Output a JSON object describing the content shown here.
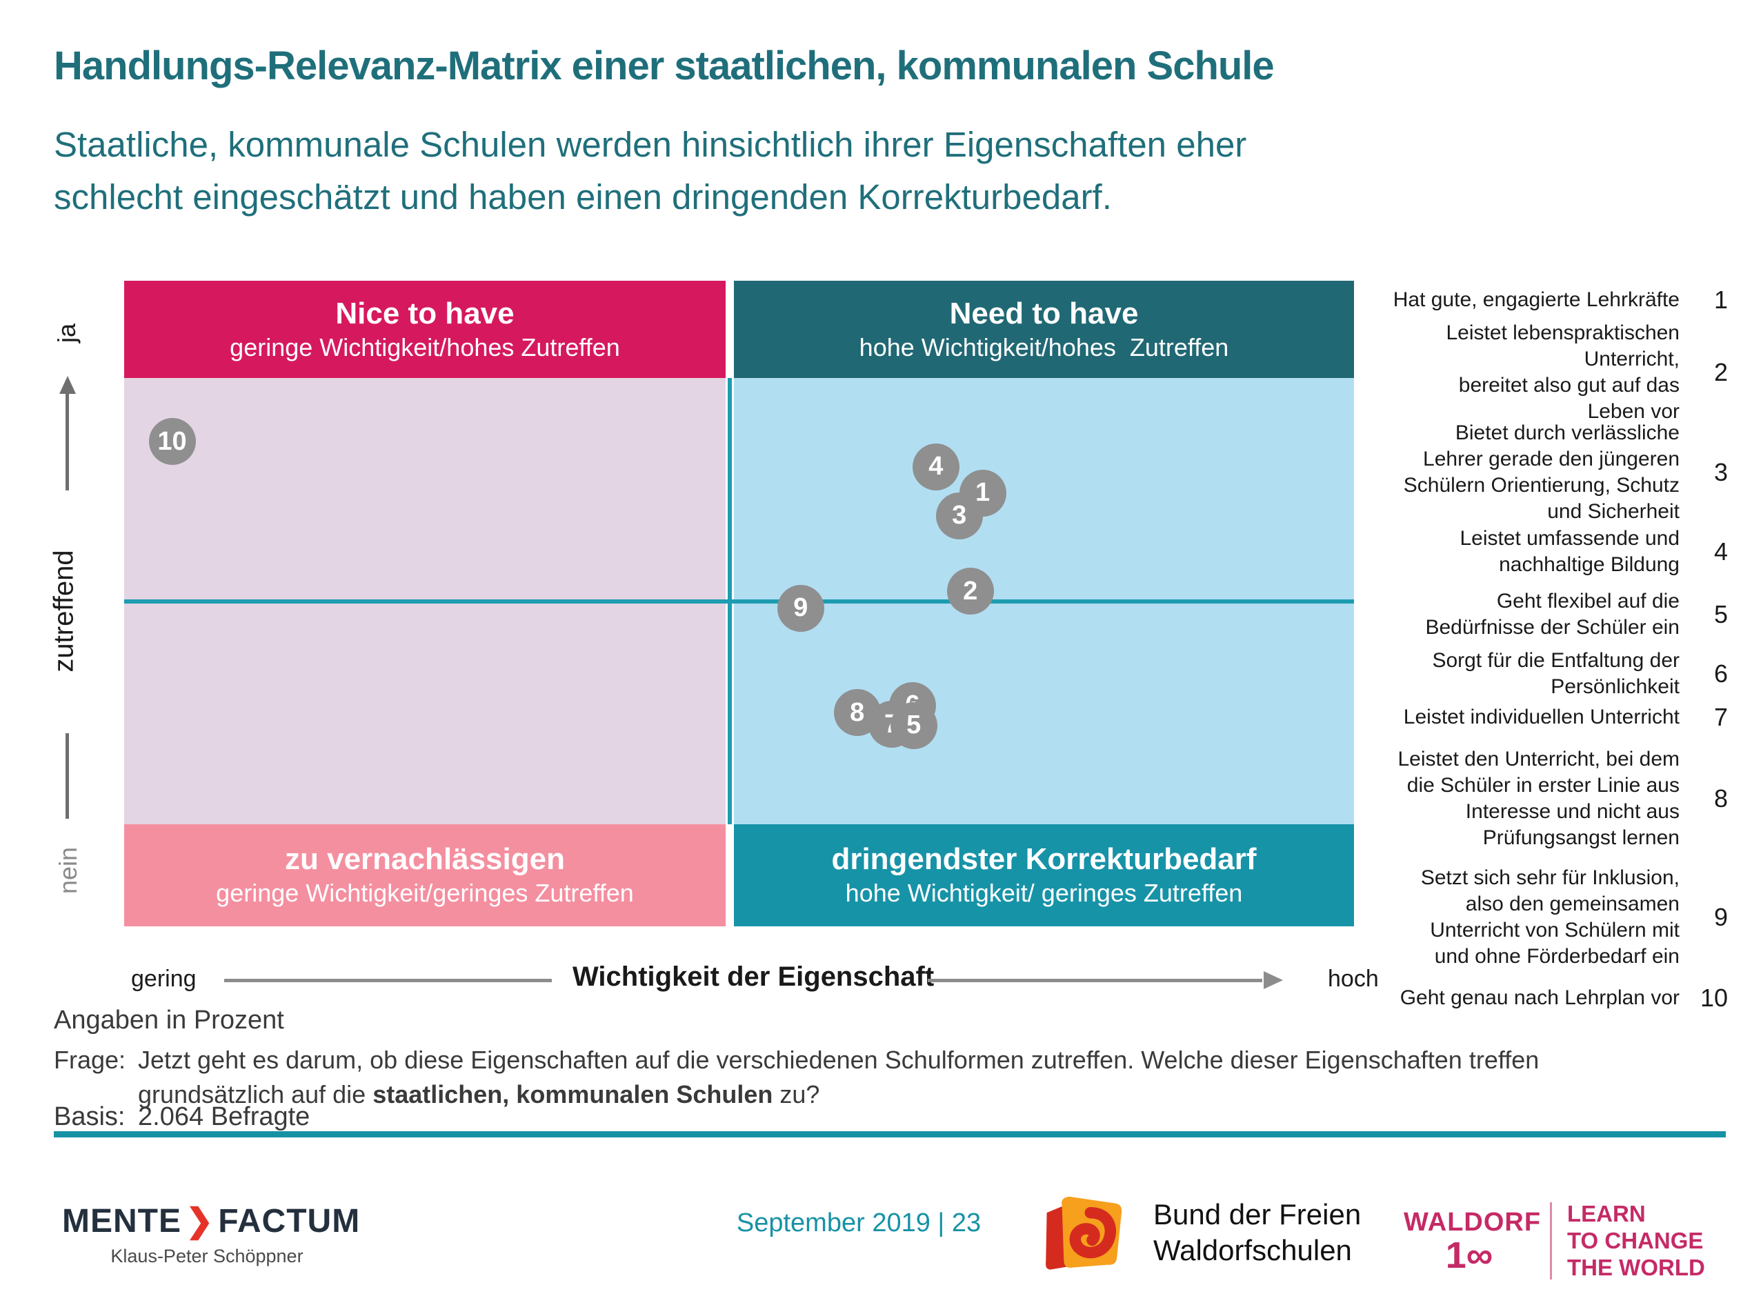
{
  "slide": {
    "title": "Handlungs-Relevanz-Matrix einer staatlichen, kommunalen Schule",
    "subtitle": "Staatliche, kommunale Schulen werden hinsichtlich ihrer Eigenschaften eher\nschlecht eingeschätzt und haben einen dringenden Korrekturbedarf."
  },
  "chart_data": {
    "type": "scatter",
    "title": "Handlungs-Relevanz-Matrix einer staatlichen, kommunalen Schule",
    "unit_note": "Angaben in Prozent",
    "x_axis": {
      "label": "Wichtigkeit der Eigenschaft",
      "min_label": "gering",
      "max_label": "hoch"
    },
    "y_axis": {
      "label": "zutreffend",
      "max_label": "ja",
      "min_label": "nein"
    },
    "quadrants": {
      "top_left": {
        "title": "Nice to have",
        "subtitle": "geringe Wichtigkeit/hohes Zutreffen",
        "color": "#D6195E"
      },
      "top_right": {
        "title": "Need to have",
        "subtitle": "hohe Wichtigkeit/hohes  Zutreffen",
        "color": "#206874"
      },
      "bottom_left": {
        "title": "zu vernachlässigen",
        "subtitle": "geringe Wichtigkeit/geringes Zutreffen",
        "color": "#F48FA0"
      },
      "bottom_right": {
        "title": "dringendster Korrekturbedarf",
        "subtitle": "hohe Wichtigkeit/ geringes Zutreffen",
        "color": "#1793A8"
      }
    },
    "points": [
      {
        "id": "10",
        "label": "Geht genau nach Lehrplan vor",
        "x_pct": 3.9,
        "y_pct": 24.9
      },
      {
        "id": "4",
        "label": "Leistet umfassende und nachhaltige Bildung",
        "x_pct": 66.0,
        "y_pct": 28.8
      },
      {
        "id": "1",
        "label": "Hat gute, engagierte Lehrkräfte",
        "x_pct": 69.8,
        "y_pct": 32.9
      },
      {
        "id": "3",
        "label": "Bietet durch verlässliche Lehrer gerade den jüngeren Schülern Orientierung, Schutz und Sicherheit",
        "x_pct": 67.9,
        "y_pct": 36.4
      },
      {
        "id": "2",
        "label": "Leistet lebenspraktischen Unterricht, bereitet also gut auf das Leben vor",
        "x_pct": 68.8,
        "y_pct": 48.1
      },
      {
        "id": "9",
        "label": "Setzt sich sehr für Inklusion, also den gemeinsamen Unterricht von Schülern mit und ohne Förderbedarf ein",
        "x_pct": 55.0,
        "y_pct": 50.7
      },
      {
        "id": "8",
        "label": "Leistet den Unterricht, bei dem die Schüler in erster Linie aus Interesse und nicht aus Prüfungsangst lernen",
        "x_pct": 59.6,
        "y_pct": 66.9
      },
      {
        "id": "6",
        "label": "Sorgt für die Entfaltung der Persönlichkeit",
        "x_pct": 64.1,
        "y_pct": 65.8
      },
      {
        "id": "7",
        "label": "Leistet individuellen Unterricht",
        "x_pct": 62.4,
        "y_pct": 68.7
      },
      {
        "id": "5",
        "label": "Geht flexibel auf die Bedürfnisse der Schüler ein",
        "x_pct": 64.2,
        "y_pct": 68.9
      }
    ]
  },
  "legend": {
    "items": [
      {
        "num": "1",
        "text": "Hat gute, engagierte Lehrkräfte"
      },
      {
        "num": "2",
        "text": "Leistet lebenspraktischen\nUnterricht,\nbereitet also gut auf das\nLeben vor"
      },
      {
        "num": "3",
        "text": "Bietet durch verlässliche\nLehrer gerade den jüngeren\nSchülern Orientierung, Schutz\nund Sicherheit"
      },
      {
        "num": "4",
        "text": "Leistet umfassende und\nnachhaltige Bildung"
      },
      {
        "num": "5",
        "text": "Geht flexibel auf die\nBedürfnisse der Schüler ein"
      },
      {
        "num": "6",
        "text": "Sorgt für die Entfaltung der\nPersönlichkeit"
      },
      {
        "num": "7",
        "text": "Leistet individuellen Unterricht"
      },
      {
        "num": "8",
        "text": "Leistet den Unterricht, bei dem\ndie Schüler in erster Linie aus\nInteresse und nicht aus\nPrüfungsangst lernen"
      },
      {
        "num": "9",
        "text": "Setzt sich sehr für Inklusion,\nalso den gemeinsamen\nUnterricht von Schülern mit\nund ohne Förderbedarf ein"
      },
      {
        "num": "10",
        "text": "Geht genau nach Lehrplan vor"
      }
    ]
  },
  "footnotes": {
    "unit": "Angaben in Prozent",
    "question_label": "Frage:",
    "question_before": "Jetzt geht es darum, ob diese Eigenschaften auf die verschiedenen Schulformen zutreffen. Welche dieser Eigenschaften treffen\ngrundsätzlich auf die ",
    "question_bold": "staatlichen, kommunalen Schulen",
    "question_after": " zu?",
    "basis_label": "Basis:",
    "basis_value": "2.064 Befragte"
  },
  "footer": {
    "brand_left": "MENTE",
    "brand_chevron": "❯",
    "brand_right": "FACTUM",
    "brand_person": "Klaus-Peter Schöppner",
    "date_page": "September 2019 | 23",
    "partner_name": "Bund der Freien\nWaldorfschulen",
    "waldorf_word": "WALDORF",
    "waldorf_num": "1∞",
    "waldorf_tagline": "LEARN\nTO CHANGE\nTHE WORLD"
  },
  "colors": {
    "title_teal": "#1F6F7B",
    "quad_top_left": "#D6195E",
    "quad_top_right": "#206874",
    "quad_bottom_left": "#F48FA0",
    "quad_bottom_right": "#1793A8",
    "body_left": "#E3D5E3",
    "body_right": "#B2DEF2",
    "axis_line_teal": "#1E9CB0",
    "bubble_gray": "#8F8F8F",
    "rule_teal": "#1792A5",
    "waldorf_pink": "#C52A66",
    "brand_navy": "#24303E",
    "brand_red": "#E63329"
  }
}
